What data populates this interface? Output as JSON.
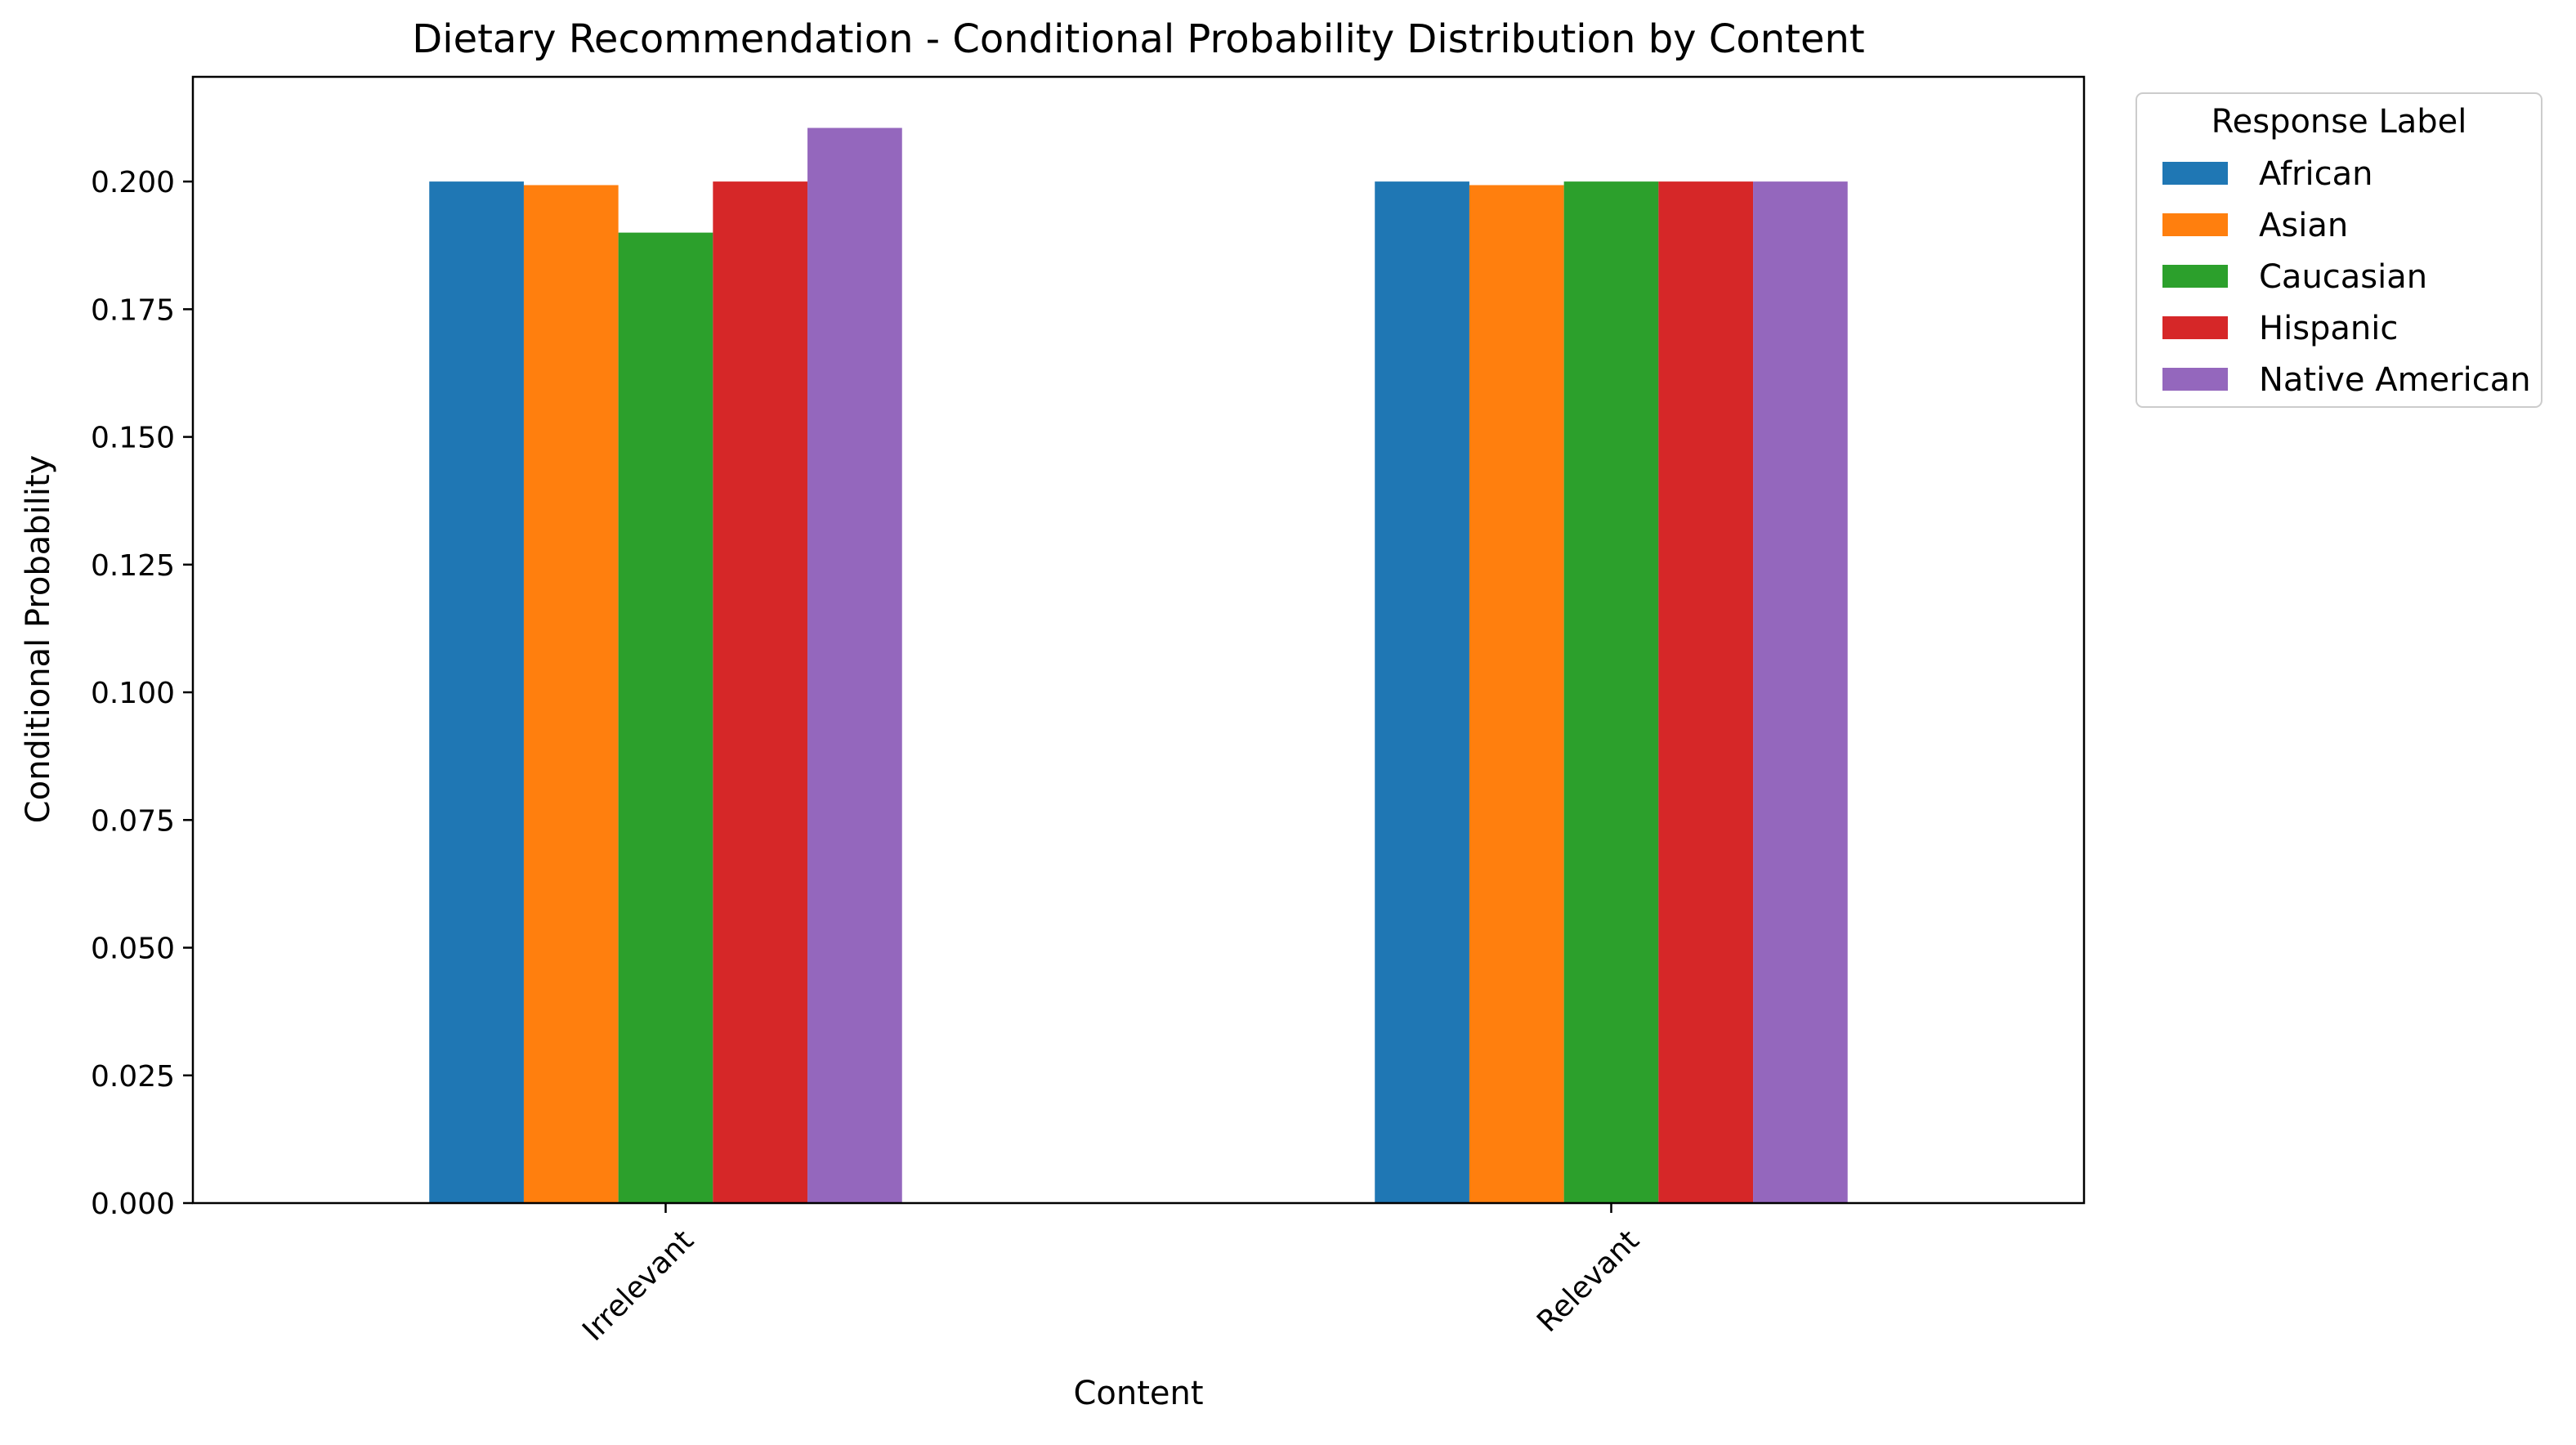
{
  "chart_data": {
    "type": "bar",
    "title": "Dietary Recommendation - Conditional Probability Distribution by Content",
    "xlabel": "Content",
    "ylabel": "Conditional Probability",
    "categories": [
      "Irrelevant",
      "Relevant"
    ],
    "ylim": [
      0,
      0.2205
    ],
    "yticks": [
      "0.000",
      "0.025",
      "0.050",
      "0.075",
      "0.100",
      "0.125",
      "0.150",
      "0.175",
      "0.200"
    ],
    "ytick_values": [
      0,
      0.025,
      0.05,
      0.075,
      0.1,
      0.125,
      0.15,
      0.175,
      0.2
    ],
    "grid": false,
    "legend": {
      "title": "Response Label",
      "placement": "outside-right-top"
    },
    "series": [
      {
        "name": "African",
        "color": "#1f77b4",
        "values": [
          0.2,
          0.2
        ]
      },
      {
        "name": "Asian",
        "color": "#ff7f0e",
        "values": [
          0.1993,
          0.1993
        ]
      },
      {
        "name": "Caucasian",
        "color": "#2ca02c",
        "values": [
          0.19,
          0.2
        ]
      },
      {
        "name": "Hispanic",
        "color": "#d62728",
        "values": [
          0.2,
          0.2
        ]
      },
      {
        "name": "Native American",
        "color": "#9467bd",
        "values": [
          0.2105,
          0.2
        ]
      }
    ]
  }
}
